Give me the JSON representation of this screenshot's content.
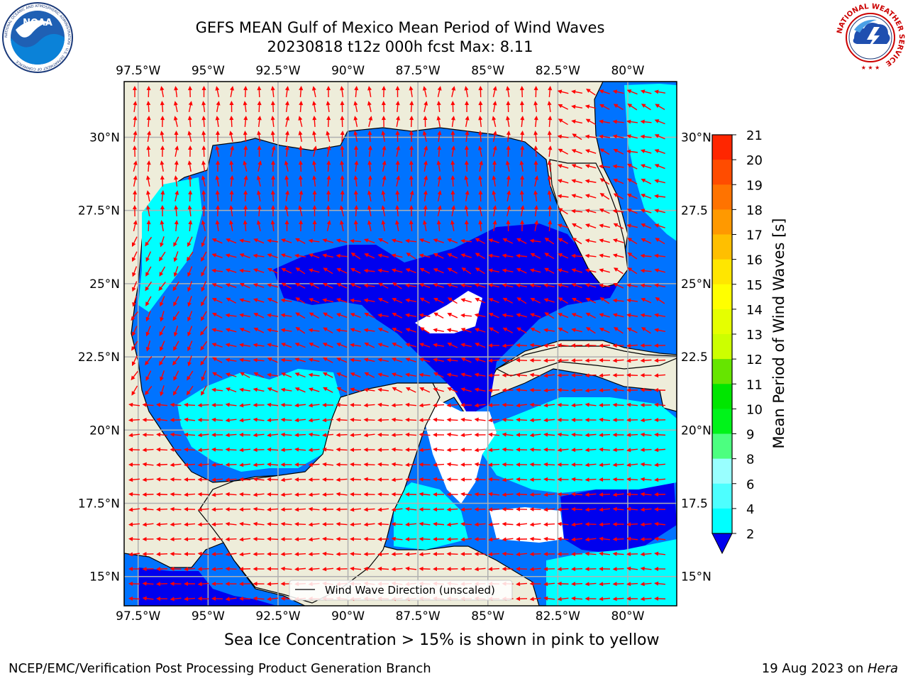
{
  "header": {
    "title_line1": "GEFS MEAN Gulf of Mexico Mean Period of Wind Waves",
    "title_line2": "20230818 t12z 000h fcst   Max: 8.11"
  },
  "logos": {
    "left": {
      "name": "noaa-logo",
      "text": "NOAA",
      "ring_text": "NATIONAL OCEANIC AND ATMOSPHERIC ADMINISTRATION · U.S. DEPARTMENT OF COMMERCE"
    },
    "right": {
      "name": "nws-logo",
      "ring_text": "NATIONAL WEATHER SERVICE"
    }
  },
  "map": {
    "lon_labels": [
      "97.5°W",
      "95°W",
      "92.5°W",
      "90°W",
      "87.5°W",
      "85°W",
      "82.5°W",
      "80°W"
    ],
    "lon_values": [
      -97.5,
      -95,
      -92.5,
      -90,
      -87.5,
      -85,
      -82.5,
      -80
    ],
    "lat_labels_left": [
      "30°N",
      "27.5°N",
      "25°N",
      "22.5°N",
      "20°N",
      "17.5°N",
      "15°N"
    ],
    "lat_labels_right": [
      "30°N",
      "27.5",
      "25°N",
      "22.5",
      "20°N",
      "17.5",
      "15°N"
    ],
    "lat_values": [
      30,
      27.5,
      25,
      22.5,
      20,
      17.5,
      15
    ],
    "lon_range": [
      -98,
      -78.25
    ],
    "lat_range": [
      14,
      31.9
    ],
    "legend_label": "Wind Wave Direction (unscaled)",
    "colors": {
      "land": "#eeedda",
      "ocean_2_4": "#0073ff",
      "ocean_0_2": "#0000ee",
      "ocean_4_6": "#00ffff",
      "ocean_6_8": "#4dffff",
      "arrow": "#ff0000",
      "grid": "#b0b0b0"
    }
  },
  "colorbar": {
    "label": "Mean Period of Wind Waves [s]",
    "ticks": [
      "21",
      "20",
      "19",
      "18",
      "17",
      "16",
      "15",
      "14",
      "13",
      "12",
      "11",
      "10",
      "9",
      "8",
      "6",
      "4",
      "2"
    ],
    "colors_top_to_bottom": [
      "#ff0000",
      "#ff2600",
      "#ff4c00",
      "#ff7300",
      "#ff9900",
      "#ffbf00",
      "#ffe600",
      "#ffff00",
      "#e5ff00",
      "#ccff00",
      "#66e500",
      "#00e600",
      "#00f31a",
      "#4cff80",
      "#99ffff",
      "#4dffff",
      "#00ffff",
      "#0073ff"
    ],
    "extend_color": "#0000ee"
  },
  "footer": {
    "sea_ice_note": "Sea Ice Concentration > 15% is shown in pink to yellow",
    "credit": "NCEP/EMC/Verification Post Processing Product Generation Branch",
    "date_prefix": "19 Aug 2023 on ",
    "machine": "Hera"
  }
}
